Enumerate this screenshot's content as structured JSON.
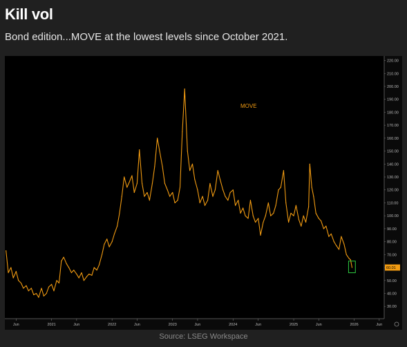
{
  "header": {
    "title": "Kill vol",
    "subtitle": "Bond edition...MOVE at the lowest levels since October 2021."
  },
  "footer": {
    "source": "Source: LSEG Workspace"
  },
  "colors": {
    "background": "#202020",
    "plot_background": "#000000",
    "line": "#f39c12",
    "highlight_box": "#2ecc40",
    "last_value_badge": "#f39c12"
  },
  "chart_data": {
    "type": "line",
    "title": "",
    "xlabel": "",
    "ylabel": "",
    "series": [
      {
        "name": "MOVE",
        "points": [
          [
            "2020-04-01",
            73
          ],
          [
            "2020-04-15",
            56
          ],
          [
            "2020-05-01",
            60
          ],
          [
            "2020-05-15",
            52
          ],
          [
            "2020-06-01",
            57
          ],
          [
            "2020-06-15",
            50
          ],
          [
            "2020-07-01",
            48
          ],
          [
            "2020-07-15",
            44
          ],
          [
            "2020-08-01",
            46
          ],
          [
            "2020-08-15",
            42
          ],
          [
            "2020-09-01",
            44
          ],
          [
            "2020-09-15",
            39
          ],
          [
            "2020-10-01",
            40
          ],
          [
            "2020-10-15",
            37
          ],
          [
            "2020-11-01",
            44
          ],
          [
            "2020-11-15",
            38
          ],
          [
            "2020-12-01",
            40
          ],
          [
            "2020-12-15",
            45
          ],
          [
            "2021-01-01",
            47
          ],
          [
            "2021-01-15",
            42
          ],
          [
            "2021-02-01",
            50
          ],
          [
            "2021-02-15",
            48
          ],
          [
            "2021-03-01",
            65
          ],
          [
            "2021-03-15",
            68
          ],
          [
            "2021-04-01",
            63
          ],
          [
            "2021-04-15",
            60
          ],
          [
            "2021-05-01",
            56
          ],
          [
            "2021-05-15",
            58
          ],
          [
            "2021-06-01",
            55
          ],
          [
            "2021-06-15",
            52
          ],
          [
            "2021-07-01",
            56
          ],
          [
            "2021-07-15",
            50
          ],
          [
            "2021-08-01",
            53
          ],
          [
            "2021-08-15",
            55
          ],
          [
            "2021-09-01",
            54
          ],
          [
            "2021-09-15",
            60
          ],
          [
            "2021-10-01",
            58
          ],
          [
            "2021-10-15",
            62
          ],
          [
            "2021-11-01",
            70
          ],
          [
            "2021-11-15",
            78
          ],
          [
            "2021-12-01",
            82
          ],
          [
            "2021-12-15",
            76
          ],
          [
            "2022-01-01",
            80
          ],
          [
            "2022-01-15",
            86
          ],
          [
            "2022-02-01",
            92
          ],
          [
            "2022-02-15",
            102
          ],
          [
            "2022-03-01",
            115
          ],
          [
            "2022-03-15",
            130
          ],
          [
            "2022-04-01",
            122
          ],
          [
            "2022-04-15",
            126
          ],
          [
            "2022-05-01",
            131
          ],
          [
            "2022-05-15",
            118
          ],
          [
            "2022-06-01",
            125
          ],
          [
            "2022-06-15",
            151
          ],
          [
            "2022-07-01",
            125
          ],
          [
            "2022-07-15",
            115
          ],
          [
            "2022-08-01",
            118
          ],
          [
            "2022-08-15",
            112
          ],
          [
            "2022-09-01",
            125
          ],
          [
            "2022-09-15",
            138
          ],
          [
            "2022-10-01",
            160
          ],
          [
            "2022-10-15",
            150
          ],
          [
            "2022-11-01",
            138
          ],
          [
            "2022-11-15",
            125
          ],
          [
            "2022-12-01",
            120
          ],
          [
            "2022-12-15",
            115
          ],
          [
            "2023-01-01",
            118
          ],
          [
            "2023-01-15",
            110
          ],
          [
            "2023-02-01",
            112
          ],
          [
            "2023-02-15",
            122
          ],
          [
            "2023-03-01",
            165
          ],
          [
            "2023-03-15",
            198
          ],
          [
            "2023-04-01",
            150
          ],
          [
            "2023-04-15",
            135
          ],
          [
            "2023-05-01",
            140
          ],
          [
            "2023-05-15",
            128
          ],
          [
            "2023-06-01",
            120
          ],
          [
            "2023-06-15",
            110
          ],
          [
            "2023-07-01",
            115
          ],
          [
            "2023-07-15",
            108
          ],
          [
            "2023-08-01",
            112
          ],
          [
            "2023-08-15",
            125
          ],
          [
            "2023-09-01",
            115
          ],
          [
            "2023-09-15",
            120
          ],
          [
            "2023-10-01",
            135
          ],
          [
            "2023-10-15",
            128
          ],
          [
            "2023-11-01",
            120
          ],
          [
            "2023-11-15",
            115
          ],
          [
            "2023-12-01",
            112
          ],
          [
            "2023-12-15",
            118
          ],
          [
            "2024-01-01",
            120
          ],
          [
            "2024-01-15",
            108
          ],
          [
            "2024-02-01",
            112
          ],
          [
            "2024-02-15",
            102
          ],
          [
            "2024-03-01",
            106
          ],
          [
            "2024-03-15",
            100
          ],
          [
            "2024-04-01",
            98
          ],
          [
            "2024-04-15",
            112
          ],
          [
            "2024-05-01",
            100
          ],
          [
            "2024-05-15",
            95
          ],
          [
            "2024-06-01",
            98
          ],
          [
            "2024-06-15",
            85
          ],
          [
            "2024-07-01",
            95
          ],
          [
            "2024-07-15",
            100
          ],
          [
            "2024-08-01",
            110
          ],
          [
            "2024-08-15",
            100
          ],
          [
            "2024-09-01",
            102
          ],
          [
            "2024-09-15",
            108
          ],
          [
            "2024-10-01",
            120
          ],
          [
            "2024-10-15",
            122
          ],
          [
            "2024-11-01",
            135
          ],
          [
            "2024-11-15",
            110
          ],
          [
            "2024-12-01",
            95
          ],
          [
            "2024-12-15",
            102
          ],
          [
            "2025-01-01",
            100
          ],
          [
            "2025-01-15",
            108
          ],
          [
            "2025-02-01",
            97
          ],
          [
            "2025-02-15",
            92
          ],
          [
            "2025-03-01",
            100
          ],
          [
            "2025-03-15",
            95
          ],
          [
            "2025-04-01",
            107
          ],
          [
            "2025-04-08",
            140
          ],
          [
            "2025-04-20",
            122
          ],
          [
            "2025-05-01",
            115
          ],
          [
            "2025-05-15",
            102
          ],
          [
            "2025-06-01",
            98
          ],
          [
            "2025-06-15",
            96
          ],
          [
            "2025-07-01",
            90
          ],
          [
            "2025-07-15",
            92
          ],
          [
            "2025-08-01",
            84
          ],
          [
            "2025-08-15",
            86
          ],
          [
            "2025-09-01",
            80
          ],
          [
            "2025-09-15",
            77
          ],
          [
            "2025-10-01",
            74
          ],
          [
            "2025-10-15",
            84
          ],
          [
            "2025-11-01",
            78
          ],
          [
            "2025-11-15",
            70
          ],
          [
            "2025-12-01",
            67
          ],
          [
            "2025-12-10",
            66
          ],
          [
            "2025-12-19",
            60.01
          ]
        ]
      }
    ],
    "series_label": "MOVE",
    "last_value_label": "60.01",
    "x_tick_labels": [
      "Jun",
      "2021",
      "Jun",
      "2022",
      "Jun",
      "2023",
      "Jun",
      "2024",
      "Jun",
      "2025",
      "Jun",
      "2026",
      "Jun"
    ],
    "x_tick_dates": [
      "2020-06-01",
      "2021-01-01",
      "2021-06-01",
      "2022-01-01",
      "2022-06-01",
      "2023-01-01",
      "2023-06-01",
      "2024-01-01",
      "2024-06-01",
      "2025-01-01",
      "2025-06-01",
      "2026-01-01",
      "2026-06-01"
    ],
    "y_tick_values": [
      30,
      40,
      50,
      60,
      70,
      80,
      90,
      100,
      110,
      120,
      130,
      140,
      150,
      160,
      170,
      180,
      190,
      200,
      210,
      220
    ],
    "y_tick_labels": [
      "30.00",
      "40.00",
      "50.00",
      "60.00",
      "70.00",
      "80.00",
      "90.00",
      "100.00",
      "110.00",
      "120.00",
      "130.00",
      "140.00",
      "150.00",
      "160.00",
      "170.00",
      "180.00",
      "190.00",
      "200.00",
      "210.00",
      "220.00"
    ],
    "ylim": [
      20.5,
      223.5
    ],
    "xlim": [
      "2020-03-25",
      "2026-07-01"
    ],
    "y_axis_side": "right",
    "grid": false,
    "annotation": {
      "type": "box",
      "x_range": [
        "2025-11-28",
        "2026-01-08"
      ],
      "y_range": [
        56,
        65
      ]
    }
  }
}
